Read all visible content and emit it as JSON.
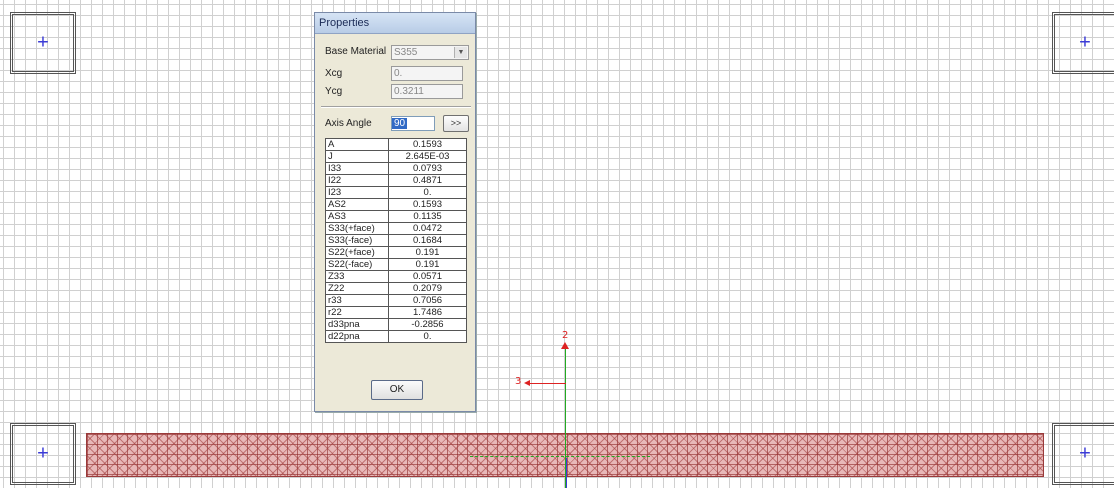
{
  "dialog": {
    "title": "Properties",
    "base_material_label": "Base Material",
    "base_material_value": "S355",
    "xcg_label": "Xcg",
    "xcg_value": "0.",
    "ycg_label": "Ycg",
    "ycg_value": "0.3211",
    "axis_angle_label": "Axis Angle",
    "axis_angle_value": "90",
    "more_label": ">>",
    "ok_label": "OK",
    "properties": [
      {
        "name": "A",
        "value": "0.1593"
      },
      {
        "name": "J",
        "value": "2.645E-03"
      },
      {
        "name": "I33",
        "value": "0.0793"
      },
      {
        "name": "I22",
        "value": "0.4871"
      },
      {
        "name": "I23",
        "value": "0."
      },
      {
        "name": "AS2",
        "value": "0.1593"
      },
      {
        "name": "AS3",
        "value": "0.1135"
      },
      {
        "name": "S33(+face)",
        "value": "0.0472"
      },
      {
        "name": "S33(-face)",
        "value": "0.1684"
      },
      {
        "name": "S22(+face)",
        "value": "0.191"
      },
      {
        "name": "S22(-face)",
        "value": "0.191"
      },
      {
        "name": "Z33",
        "value": "0.0571"
      },
      {
        "name": "Z22",
        "value": "0.2079"
      },
      {
        "name": "r33",
        "value": "0.7056"
      },
      {
        "name": "r22",
        "value": "1.7486"
      },
      {
        "name": "d33pna",
        "value": "-0.2856"
      },
      {
        "name": "d22pna",
        "value": "0."
      }
    ]
  },
  "axes": {
    "label_2": "2",
    "label_3": "3"
  }
}
